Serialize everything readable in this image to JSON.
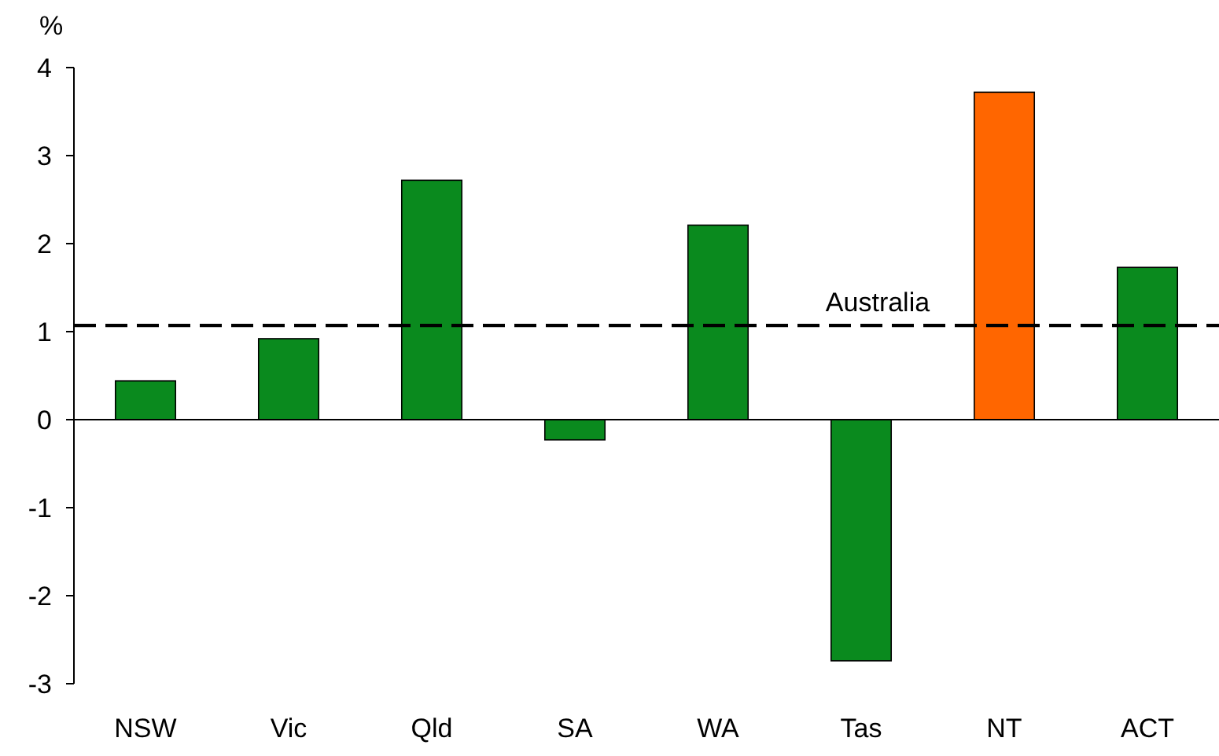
{
  "chart_data": {
    "type": "bar",
    "ylabel": "%",
    "categories": [
      "NSW",
      "Vic",
      "Qld",
      "SA",
      "WA",
      "Tas",
      "NT",
      "ACT"
    ],
    "values": [
      0.44,
      0.92,
      2.72,
      -0.23,
      2.21,
      -2.74,
      3.72,
      1.73
    ],
    "colors": [
      "#0a8a1e",
      "#0a8a1e",
      "#0a8a1e",
      "#0a8a1e",
      "#0a8a1e",
      "#0a8a1e",
      "#ff6600",
      "#0a8a1e"
    ],
    "ylim": [
      -3,
      4
    ],
    "yticks": [
      -3,
      -2,
      -1,
      0,
      1,
      2,
      3,
      4
    ],
    "ref_lines": [
      {
        "axis": "y",
        "value": 1.07,
        "label": "Australia",
        "color": "#000000",
        "line_style": "dashed"
      }
    ]
  }
}
